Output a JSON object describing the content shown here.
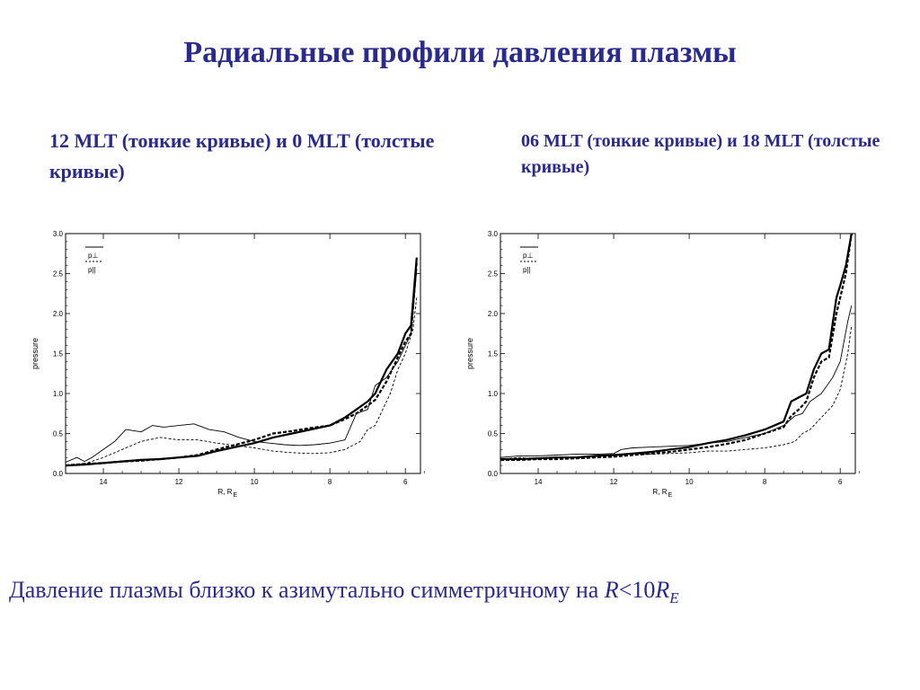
{
  "slide": {
    "title": "Радиальные профили давления плазмы",
    "caption_left": "12 MLT (тонкие кривые) и 0 MLT (толстые кривые)",
    "caption_right": "06 MLT (тонкие кривые) и 18 MLT (толстые кривые)",
    "footer": {
      "text": "Давление плазмы близко к азимутально симметричному на ",
      "r_symbol": "R",
      "lt_value": "<10",
      "re_symbol": "R",
      "re_sub": "E"
    }
  },
  "colors": {
    "title": "#2a2a8c",
    "axes": "#000000"
  },
  "chart_data": [
    {
      "type": "line",
      "ylabel": "pressure",
      "xlabel": "R, R",
      "xlabel_sub": "E",
      "xlim": [
        15.0,
        5.6
      ],
      "ylim": [
        0.0,
        3.0
      ],
      "x_ticks": [
        14,
        12,
        10,
        8,
        6
      ],
      "x_tick_labels": [
        "14",
        "12",
        "10",
        "8",
        "6"
      ],
      "y_ticks": [
        0.0,
        0.5,
        1.0,
        1.5,
        2.0,
        2.5,
        3.0
      ],
      "y_tick_labels": [
        "0.0",
        "0.5",
        "1.0",
        "1.5",
        "2.0",
        "2.5",
        "3.0"
      ],
      "legend": {
        "position": "top-left",
        "entries": [
          "p⊥",
          "p||"
        ]
      },
      "series": [
        {
          "style": "thin-solid",
          "x": [
            15.0,
            14.7,
            14.5,
            14.3,
            14.0,
            13.7,
            13.4,
            13.0,
            12.7,
            12.4,
            12.0,
            11.6,
            11.2,
            10.8,
            10.4,
            10.0,
            9.6,
            9.2,
            8.8,
            8.4,
            8.0,
            7.6,
            7.3,
            7.0,
            6.8,
            6.5,
            6.2,
            6.0,
            5.85,
            5.7
          ],
          "y": [
            0.14,
            0.2,
            0.15,
            0.2,
            0.3,
            0.4,
            0.55,
            0.52,
            0.6,
            0.58,
            0.6,
            0.62,
            0.55,
            0.52,
            0.45,
            0.4,
            0.38,
            0.36,
            0.35,
            0.36,
            0.38,
            0.42,
            0.75,
            0.8,
            1.1,
            1.2,
            1.4,
            1.6,
            1.75,
            2.55
          ]
        },
        {
          "style": "thin-dashed",
          "x": [
            15.0,
            14.5,
            14.0,
            13.5,
            13.0,
            12.5,
            12.0,
            11.5,
            11.0,
            10.5,
            10.0,
            9.5,
            9.0,
            8.5,
            8.0,
            7.6,
            7.2,
            7.0,
            6.8,
            6.6,
            6.4,
            6.2,
            6.0,
            5.8,
            5.7
          ],
          "y": [
            0.1,
            0.12,
            0.2,
            0.3,
            0.4,
            0.45,
            0.42,
            0.42,
            0.38,
            0.35,
            0.32,
            0.28,
            0.26,
            0.25,
            0.26,
            0.3,
            0.4,
            0.55,
            0.6,
            0.8,
            1.0,
            1.3,
            1.5,
            1.8,
            2.2
          ]
        },
        {
          "style": "thick-solid",
          "x": [
            15.0,
            14.5,
            14.0,
            13.5,
            13.0,
            12.5,
            12.0,
            11.5,
            11.0,
            10.5,
            10.0,
            9.5,
            9.0,
            8.5,
            8.0,
            7.6,
            7.3,
            7.0,
            6.8,
            6.5,
            6.2,
            6.0,
            5.85,
            5.7
          ],
          "y": [
            0.1,
            0.11,
            0.13,
            0.15,
            0.17,
            0.18,
            0.2,
            0.22,
            0.28,
            0.33,
            0.38,
            0.45,
            0.5,
            0.55,
            0.6,
            0.7,
            0.8,
            0.9,
            1.0,
            1.3,
            1.5,
            1.75,
            1.85,
            2.7
          ]
        },
        {
          "style": "thick-dashed",
          "x": [
            15.0,
            14.5,
            14.0,
            13.5,
            13.0,
            12.5,
            12.0,
            11.5,
            11.0,
            10.5,
            10.0,
            9.5,
            9.0,
            8.5,
            8.0,
            7.6,
            7.3,
            7.0,
            6.8,
            6.5,
            6.2,
            6.0,
            5.85,
            5.7
          ],
          "y": [
            0.1,
            0.12,
            0.13,
            0.15,
            0.16,
            0.18,
            0.2,
            0.23,
            0.3,
            0.36,
            0.42,
            0.5,
            0.53,
            0.57,
            0.6,
            0.68,
            0.75,
            0.85,
            0.92,
            1.15,
            1.45,
            1.65,
            1.75,
            2.65
          ]
        }
      ]
    },
    {
      "type": "line",
      "ylabel": "pressure",
      "xlabel": "R, R",
      "xlabel_sub": "E",
      "xlim": [
        15.0,
        5.6
      ],
      "ylim": [
        0.0,
        3.0
      ],
      "x_ticks": [
        14,
        12,
        10,
        8,
        6
      ],
      "x_tick_labels": [
        "14",
        "12",
        "10",
        "8",
        "6"
      ],
      "y_ticks": [
        0.0,
        0.5,
        1.0,
        1.5,
        2.0,
        2.5,
        3.0
      ],
      "y_tick_labels": [
        "0.0",
        "0.5",
        "1.0",
        "1.5",
        "2.0",
        "2.5",
        "3.0"
      ],
      "legend": {
        "position": "top-left",
        "entries": [
          "p⊥",
          "p||"
        ]
      },
      "series": [
        {
          "style": "thin-solid",
          "x": [
            15.0,
            14.5,
            14.0,
            13.5,
            13.0,
            12.5,
            12.0,
            11.8,
            11.5,
            11.0,
            10.5,
            10.0,
            9.5,
            9.0,
            8.5,
            8.0,
            7.5,
            7.2,
            7.0,
            6.8,
            6.5,
            6.2,
            6.0,
            5.8,
            5.7
          ],
          "y": [
            0.2,
            0.22,
            0.22,
            0.23,
            0.24,
            0.24,
            0.25,
            0.3,
            0.32,
            0.33,
            0.34,
            0.35,
            0.38,
            0.4,
            0.45,
            0.5,
            0.6,
            0.72,
            0.75,
            0.9,
            1.0,
            1.2,
            1.4,
            1.9,
            2.1
          ]
        },
        {
          "style": "thin-dashed",
          "x": [
            15.0,
            14.5,
            14.0,
            13.5,
            13.0,
            12.5,
            12.0,
            11.5,
            11.0,
            10.5,
            10.0,
            9.5,
            9.0,
            8.5,
            8.0,
            7.5,
            7.2,
            7.0,
            6.8,
            6.6,
            6.4,
            6.2,
            6.0,
            5.8,
            5.7
          ],
          "y": [
            0.18,
            0.2,
            0.18,
            0.2,
            0.2,
            0.21,
            0.22,
            0.24,
            0.24,
            0.25,
            0.26,
            0.28,
            0.28,
            0.3,
            0.32,
            0.36,
            0.4,
            0.5,
            0.55,
            0.65,
            0.75,
            0.85,
            1.05,
            1.5,
            1.85
          ]
        },
        {
          "style": "thick-solid",
          "x": [
            15.0,
            14.5,
            14.0,
            13.5,
            13.0,
            12.5,
            12.0,
            11.5,
            11.0,
            10.5,
            10.0,
            9.5,
            9.0,
            8.5,
            8.0,
            7.5,
            7.3,
            7.1,
            6.9,
            6.7,
            6.5,
            6.3,
            6.1,
            6.0,
            5.85,
            5.7
          ],
          "y": [
            0.18,
            0.18,
            0.19,
            0.2,
            0.2,
            0.22,
            0.23,
            0.25,
            0.27,
            0.3,
            0.33,
            0.38,
            0.42,
            0.48,
            0.55,
            0.65,
            0.9,
            0.95,
            1.0,
            1.3,
            1.5,
            1.55,
            2.2,
            2.35,
            2.6,
            3.0
          ]
        },
        {
          "style": "thick-dashed",
          "x": [
            15.0,
            14.5,
            14.0,
            13.5,
            13.0,
            12.5,
            12.0,
            11.5,
            11.0,
            10.5,
            10.0,
            9.5,
            9.0,
            8.5,
            8.0,
            7.5,
            7.3,
            7.1,
            6.9,
            6.7,
            6.5,
            6.3,
            6.1,
            6.0,
            5.85,
            5.7
          ],
          "y": [
            0.17,
            0.17,
            0.18,
            0.18,
            0.19,
            0.2,
            0.21,
            0.23,
            0.25,
            0.27,
            0.3,
            0.33,
            0.37,
            0.42,
            0.5,
            0.58,
            0.72,
            0.8,
            0.9,
            1.2,
            1.4,
            1.45,
            2.0,
            2.2,
            2.5,
            3.0
          ]
        }
      ]
    }
  ]
}
